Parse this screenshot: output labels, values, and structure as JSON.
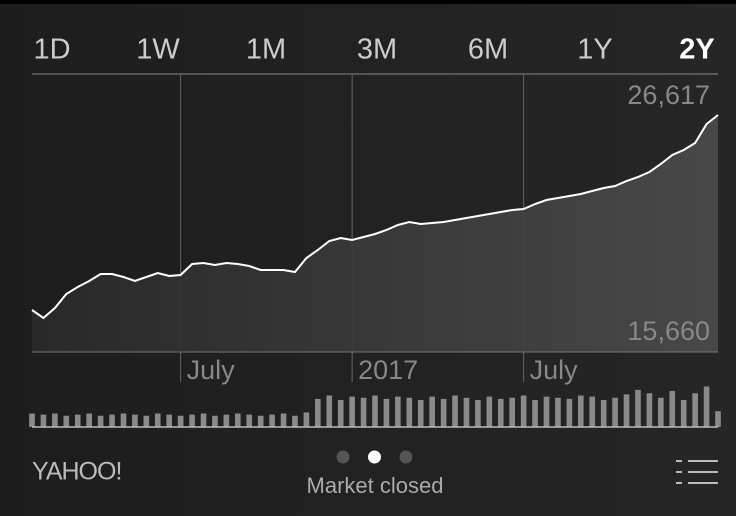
{
  "tabs": [
    "1D",
    "1W",
    "1M",
    "3M",
    "6M",
    "1Y",
    "2Y"
  ],
  "selected_tab": 6,
  "chart_data": {
    "type": "line",
    "categories": [
      null,
      null,
      null,
      null,
      null,
      null,
      null,
      null,
      null,
      null,
      null,
      null,
      null,
      "July",
      null,
      null,
      null,
      null,
      null,
      null,
      null,
      null,
      null,
      null,
      null,
      null,
      null,
      null,
      "2017",
      null,
      null,
      null,
      null,
      null,
      null,
      null,
      null,
      null,
      null,
      null,
      null,
      null,
      null,
      "July",
      null,
      null,
      null,
      null,
      null,
      null,
      null,
      null,
      null,
      null,
      null,
      null,
      null,
      null,
      null,
      null,
      null
    ],
    "series": [
      {
        "color": "#ffffff",
        "values": [
          16092,
          15660,
          16200,
          16955,
          17333,
          17657,
          18035,
          18035,
          17873,
          17657,
          17873,
          18089,
          17927,
          17981,
          18574,
          18628,
          18520,
          18628,
          18574,
          18466,
          18251,
          18251,
          18251,
          18143,
          18898,
          19330,
          19816,
          19978,
          19870,
          20032,
          20193,
          20409,
          20679,
          20841,
          20733,
          20787,
          20841,
          20949,
          21057,
          21165,
          21273,
          21381,
          21489,
          21543,
          21813,
          22028,
          22136,
          22244,
          22352,
          22514,
          22676,
          22784,
          23054,
          23270,
          23540,
          23971,
          24457,
          24727,
          25105,
          26130,
          26617
        ]
      }
    ],
    "ylim": [
      15660,
      26617
    ],
    "yticks": [
      {
        "value": 15660,
        "label": "15,660"
      },
      {
        "value": 26617,
        "label": "26,617"
      }
    ],
    "volume": {
      "color": "#8a8a8a",
      "ylim": [
        0,
        40
      ],
      "values": [
        12,
        11,
        12,
        10,
        11,
        12,
        10,
        11,
        12,
        11,
        10,
        12,
        11,
        10,
        11,
        12,
        10,
        11,
        12,
        11,
        10,
        11,
        12,
        10,
        13,
        25,
        28,
        24,
        27,
        26,
        28,
        25,
        27,
        26,
        24,
        27,
        25,
        28,
        26,
        24,
        27,
        25,
        26,
        28,
        24,
        27,
        26,
        25,
        28,
        27,
        24,
        26,
        29,
        33,
        30,
        26,
        32,
        24,
        30,
        36,
        14
      ]
    }
  },
  "footer": {
    "brand": "YAHOO!",
    "status": "Market closed",
    "pages": 3,
    "current_page": 1
  }
}
